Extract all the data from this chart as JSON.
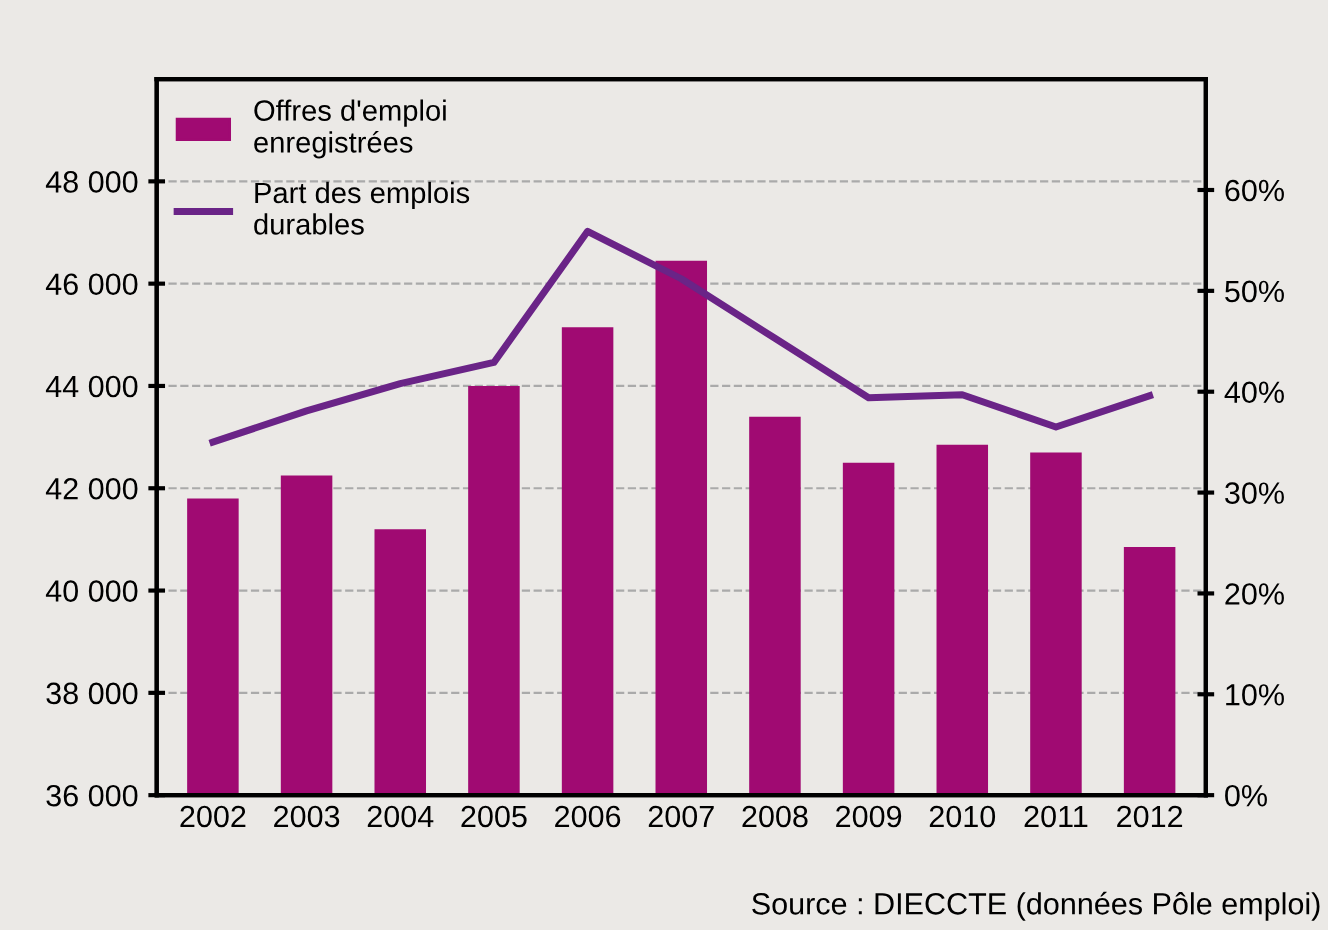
{
  "chart_data": {
    "type": "bar",
    "categories": [
      "2002",
      "2003",
      "2004",
      "2005",
      "2006",
      "2007",
      "2008",
      "2009",
      "2010",
      "2011",
      "2012"
    ],
    "series": [
      {
        "name": "Offres d'emploi\nenregistrées",
        "color": "#a00a72",
        "values": [
          41800,
          42250,
          41200,
          44000,
          45150,
          46450,
          43400,
          42500,
          42850,
          42700,
          40850
        ]
      },
      {
        "name": "Part des emplois\ndurables",
        "type": "line",
        "axis": "y2",
        "color": "#6a2487",
        "values": [
          35,
          38.1,
          40.8,
          42.9,
          55.9,
          51.2,
          45.3,
          39.4,
          39.7,
          36.5,
          39.6
        ]
      }
    ],
    "ylim": [
      36000,
      50000
    ],
    "yticks": [
      {
        "value": 36000,
        "label": "36 000"
      },
      {
        "value": 38000,
        "label": "38 000"
      },
      {
        "value": 40000,
        "label": "40 000"
      },
      {
        "value": 42000,
        "label": "42 000"
      },
      {
        "value": 44000,
        "label": "44 000"
      },
      {
        "value": 46000,
        "label": "46 000"
      },
      {
        "value": 48000,
        "label": "48 000"
      }
    ],
    "y2lim": [
      0,
      71
    ],
    "y2ticks": [
      {
        "value": 0,
        "label": "0%"
      },
      {
        "value": 10,
        "label": "10%"
      },
      {
        "value": 20,
        "label": "20%"
      },
      {
        "value": 30,
        "label": "30%"
      },
      {
        "value": 40,
        "label": "40%"
      },
      {
        "value": 50,
        "label": "50%"
      },
      {
        "value": 60,
        "label": "60%"
      }
    ],
    "grid": true,
    "legend": "top left",
    "line_style": "solid",
    "annotations": [
      "Source : DIECCTE (données Pôle emploi)"
    ]
  }
}
